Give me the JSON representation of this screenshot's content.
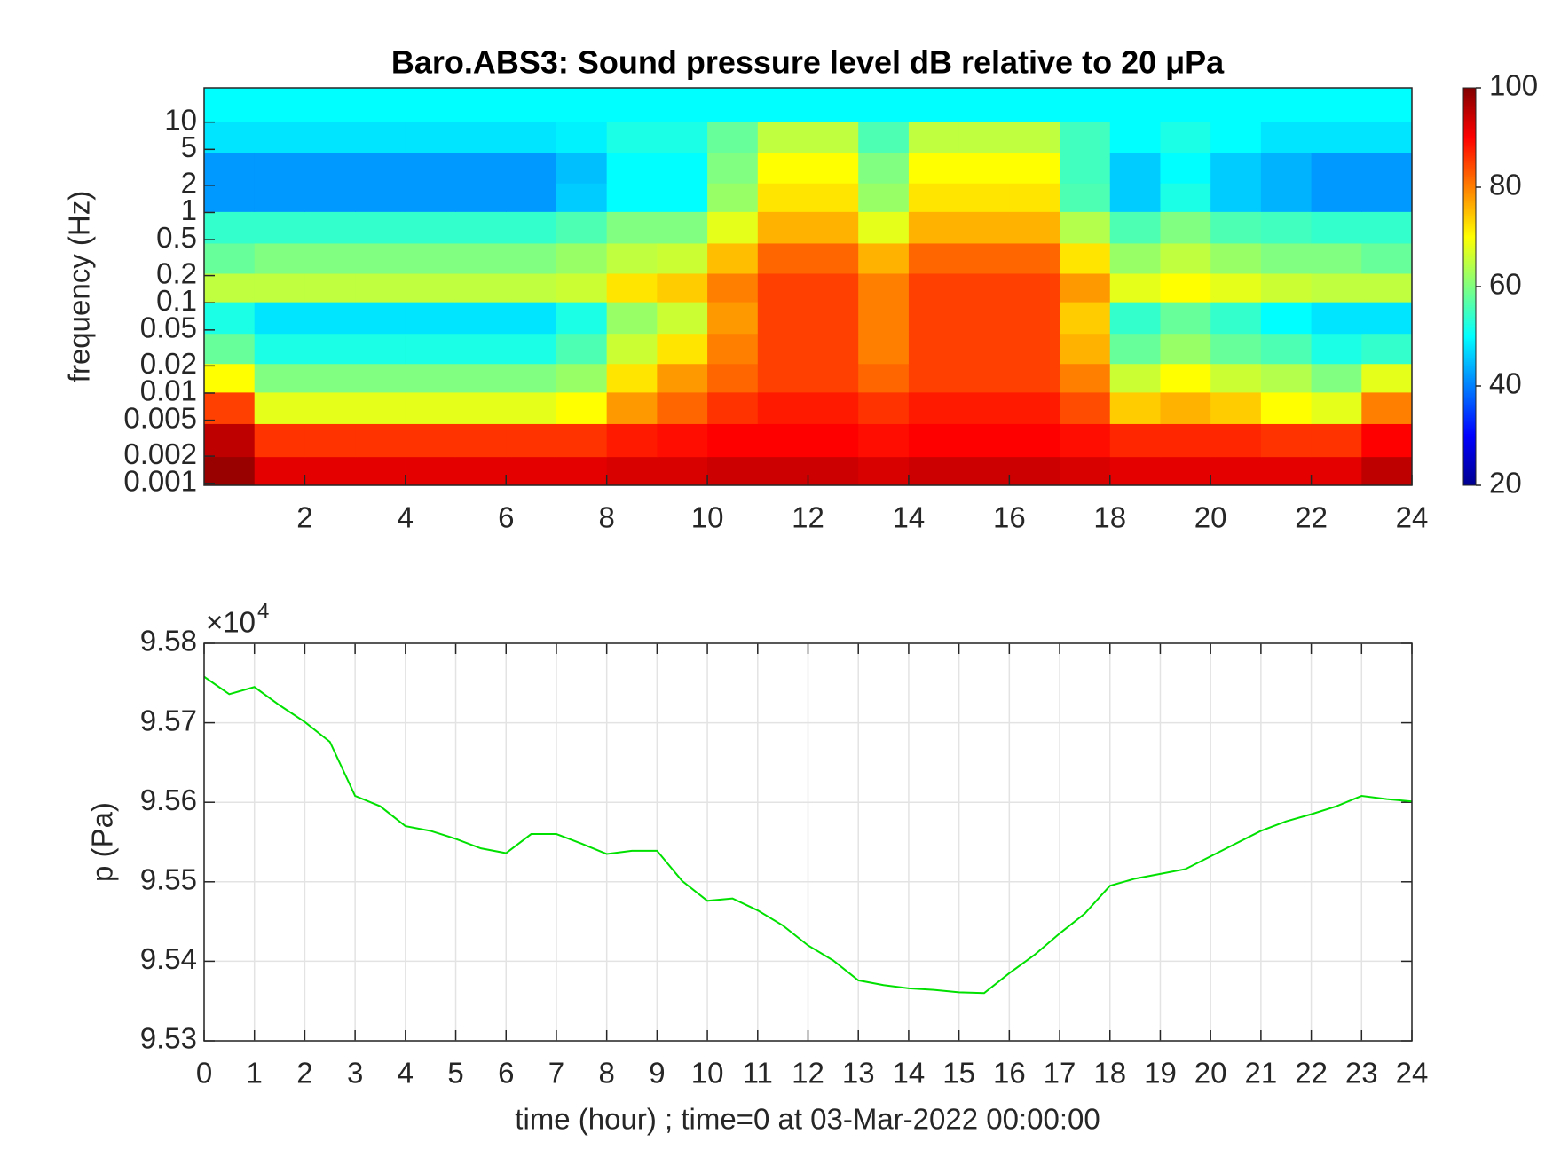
{
  "chart_data": [
    {
      "type": "heatmap",
      "title": "Baro.ABS3: Sound pressure level dB relative to 20 μPa",
      "ylabel": "frequency (Hz)",
      "log_y": true,
      "xlim": [
        0,
        24
      ],
      "xticks": [
        2,
        4,
        6,
        8,
        10,
        12,
        14,
        16,
        18,
        20,
        22,
        24
      ],
      "ylim": [
        0.00095,
        24
      ],
      "yticks": [
        0.001,
        0.002,
        0.005,
        0.01,
        0.02,
        0.05,
        0.1,
        0.2,
        0.5,
        1,
        2,
        5,
        10
      ],
      "x": [
        0.5,
        1.5,
        2.5,
        3.5,
        4.5,
        5.5,
        6.5,
        7.5,
        8.5,
        9.5,
        10.5,
        11.5,
        12.5,
        13.5,
        14.5,
        15.5,
        16.5,
        17.5,
        18.5,
        19.5,
        20.5,
        21.5,
        22.5,
        23.5
      ],
      "y": [
        0.0013,
        0.003,
        0.007,
        0.015,
        0.03,
        0.07,
        0.15,
        0.3,
        0.7,
        1.5,
        3,
        7,
        15
      ],
      "z": [
        [
          98,
          92,
          92,
          92,
          92,
          92,
          92,
          92,
          93,
          93,
          94,
          94,
          94,
          93,
          94,
          94,
          94,
          93,
          92,
          92,
          92,
          92,
          92,
          95
        ],
        [
          95,
          86,
          86,
          86,
          86,
          86,
          86,
          86,
          88,
          89,
          90,
          90,
          90,
          89,
          90,
          90,
          90,
          89,
          87,
          87,
          87,
          86,
          86,
          90
        ],
        [
          85,
          68,
          68,
          68,
          68,
          68,
          68,
          70,
          78,
          82,
          86,
          88,
          88,
          86,
          88,
          88,
          88,
          84,
          74,
          76,
          74,
          70,
          68,
          80
        ],
        [
          70,
          60,
          60,
          60,
          60,
          60,
          60,
          62,
          72,
          78,
          82,
          85,
          85,
          82,
          85,
          85,
          85,
          80,
          66,
          70,
          66,
          64,
          60,
          68
        ],
        [
          58,
          52,
          52,
          52,
          52,
          52,
          52,
          56,
          66,
          72,
          80,
          85,
          85,
          80,
          85,
          85,
          85,
          76,
          58,
          62,
          58,
          56,
          52,
          54
        ],
        [
          52,
          48,
          48,
          48,
          48,
          48,
          48,
          52,
          62,
          66,
          78,
          85,
          85,
          80,
          85,
          85,
          85,
          74,
          54,
          58,
          54,
          50,
          48,
          48
        ],
        [
          65,
          65,
          65,
          65,
          65,
          65,
          65,
          66,
          72,
          74,
          80,
          85,
          85,
          80,
          85,
          85,
          85,
          78,
          68,
          70,
          68,
          66,
          65,
          65
        ],
        [
          58,
          60,
          60,
          60,
          60,
          60,
          60,
          62,
          65,
          66,
          75,
          82,
          82,
          76,
          82,
          82,
          82,
          72,
          62,
          65,
          62,
          60,
          60,
          58
        ],
        [
          54,
          54,
          54,
          54,
          54,
          54,
          54,
          56,
          60,
          60,
          68,
          76,
          76,
          68,
          76,
          76,
          76,
          64,
          56,
          60,
          56,
          55,
          54,
          54
        ],
        [
          42,
          42,
          42,
          42,
          42,
          42,
          42,
          46,
          50,
          50,
          62,
          72,
          72,
          62,
          72,
          72,
          72,
          56,
          46,
          52,
          46,
          44,
          42,
          42
        ],
        [
          42,
          42,
          42,
          42,
          42,
          42,
          42,
          45,
          50,
          50,
          60,
          70,
          70,
          60,
          70,
          70,
          70,
          55,
          46,
          50,
          46,
          44,
          42,
          42
        ],
        [
          48,
          48,
          48,
          48,
          48,
          48,
          48,
          49,
          52,
          52,
          58,
          65,
          65,
          56,
          65,
          65,
          65,
          55,
          50,
          52,
          50,
          48,
          48,
          48
        ],
        [
          50,
          50,
          50,
          50,
          50,
          50,
          50,
          50,
          50,
          50,
          50,
          50,
          50,
          50,
          50,
          50,
          50,
          50,
          50,
          50,
          50,
          50,
          50,
          50
        ]
      ],
      "colorbar": {
        "clim": [
          20,
          100
        ],
        "ticks": [
          20,
          40,
          60,
          80,
          100
        ],
        "colormap": "jet"
      }
    },
    {
      "type": "line",
      "xlabel": "time (hour) ; time=0 at 03-Mar-2022 00:00:00",
      "ylabel": "p (Pa)",
      "y_multiplier": {
        "base": "×10",
        "exponent": "4"
      },
      "color": "#00e000",
      "grid": true,
      "xlim": [
        0,
        24
      ],
      "xticks": [
        0,
        1,
        2,
        3,
        4,
        5,
        6,
        7,
        8,
        9,
        10,
        11,
        12,
        13,
        14,
        15,
        16,
        17,
        18,
        19,
        20,
        21,
        22,
        23,
        24
      ],
      "ylim": [
        95300,
        95800
      ],
      "yticks": [
        {
          "value": 95300,
          "label": "9.53"
        },
        {
          "value": 95400,
          "label": "9.54"
        },
        {
          "value": 95500,
          "label": "9.55"
        },
        {
          "value": 95600,
          "label": "9.56"
        },
        {
          "value": 95700,
          "label": "9.57"
        },
        {
          "value": 95800,
          "label": "9.58"
        }
      ],
      "x": [
        0,
        0.5,
        1,
        1.5,
        2,
        2.5,
        3,
        3.5,
        4,
        4.5,
        5,
        5.5,
        6,
        6.5,
        7,
        7.5,
        8,
        8.5,
        9,
        9.5,
        10,
        10.5,
        11,
        11.5,
        12,
        12.5,
        13,
        13.5,
        14,
        14.5,
        15,
        15.5,
        16,
        16.5,
        17,
        17.5,
        18,
        18.5,
        19,
        19.5,
        20,
        20.5,
        21,
        21.5,
        22,
        22.5,
        23,
        23.5,
        24
      ],
      "values": [
        95758,
        95736,
        95745,
        95722,
        95701,
        95676,
        95608,
        95595,
        95570,
        95564,
        95554,
        95542,
        95536,
        95560,
        95560,
        95548,
        95535,
        95539,
        95539,
        95501,
        95476,
        95479,
        95464,
        95445,
        95420,
        95401,
        95376,
        95370,
        95366,
        95364,
        95361,
        95360,
        95385,
        95408,
        95435,
        95460,
        95495,
        95504,
        95510,
        95516,
        95532,
        95548,
        95564,
        95576,
        95585,
        95595,
        95608,
        95604,
        95601
      ]
    }
  ]
}
